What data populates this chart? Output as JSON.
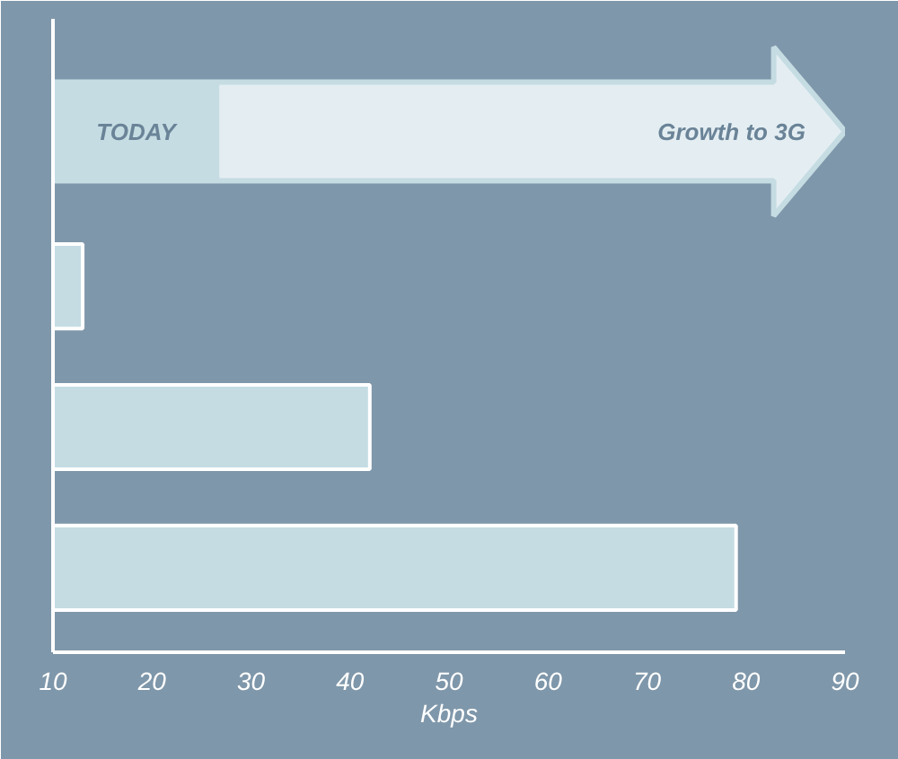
{
  "chart_data": {
    "type": "bar",
    "orientation": "horizontal",
    "categories": [
      null,
      null,
      null
    ],
    "values": [
      13,
      42,
      79
    ],
    "color": "#c5dce3",
    "xlim": [
      10,
      90
    ],
    "xticks": [
      10,
      20,
      30,
      40,
      50,
      60,
      70,
      80,
      90
    ],
    "xlabel": "Kbps",
    "grid": false,
    "tick_labels": "x",
    "annotations": [
      "TODAY",
      "Growth to 3G"
    ]
  }
}
